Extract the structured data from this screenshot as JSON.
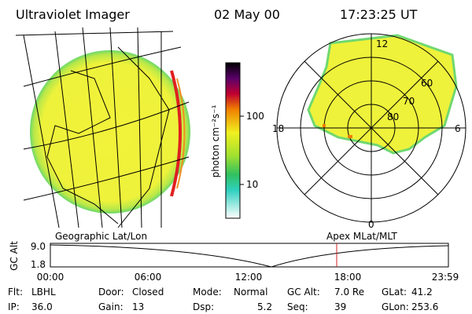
{
  "header": {
    "title": "Ultraviolet Imager",
    "date": "02 May 00",
    "time": "17:23:25 UT"
  },
  "colorbar": {
    "label": "photon cm⁻²s⁻¹",
    "ticks": [
      "100",
      "10"
    ]
  },
  "polar": {
    "clock_labels": [
      "12",
      "18",
      "6",
      "0"
    ],
    "ring_labels": [
      "60",
      "70",
      "80"
    ]
  },
  "timeline": {
    "left_label": "Geographic Lat/Lon",
    "right_label": "Apex MLat/MLT",
    "y_label": "GC Alt",
    "yticks": [
      "9.0",
      "1.8"
    ],
    "xticks": [
      "00:00",
      "06:00",
      "12:00",
      "18:00",
      "23:59"
    ]
  },
  "info": {
    "rows": [
      [
        {
          "label": "Flt:",
          "value": "LBHL"
        },
        {
          "label": "Door:",
          "value": "Closed"
        },
        {
          "label": "Mode:",
          "value": "Normal"
        },
        {
          "label": "GC Alt:",
          "value": "7.0 Re"
        },
        {
          "label": "GLat:",
          "value": "41.2"
        }
      ],
      [
        {
          "label": "IP:",
          "value": "36.0"
        },
        {
          "label": "Gain:",
          "value": "13"
        },
        {
          "label": "Dsp:",
          "value": "5.2"
        },
        {
          "label": "Seq:",
          "value": "39"
        },
        {
          "label": "GLon:",
          "value": "253.6"
        }
      ]
    ]
  }
}
